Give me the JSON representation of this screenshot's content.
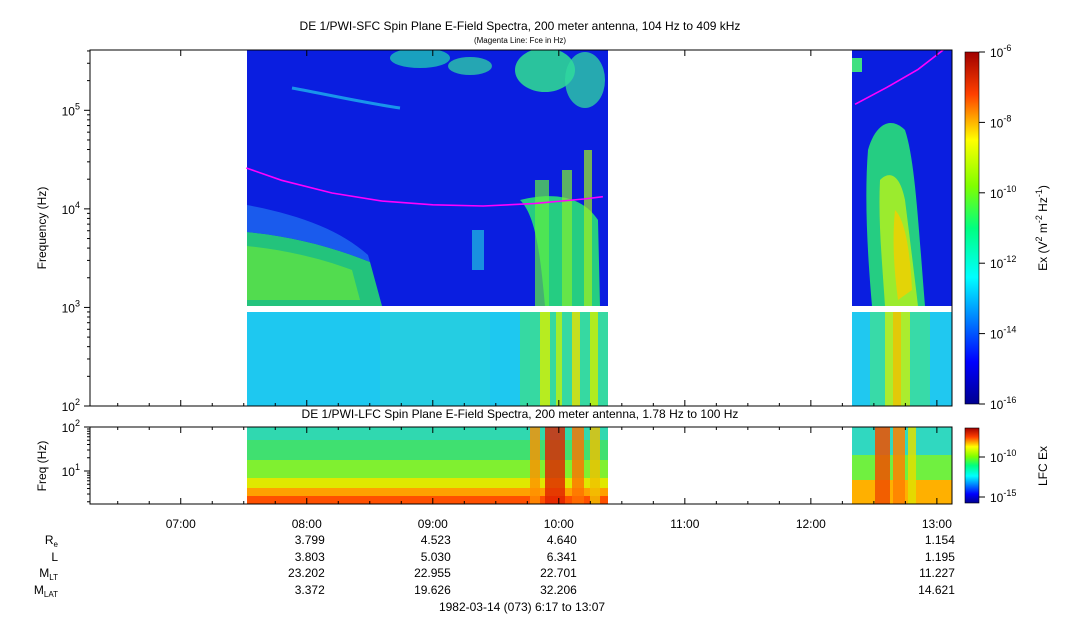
{
  "chart_data": [
    {
      "type": "heatmap",
      "title": "DE 1/PWI-SFC  Spin Plane E-Field Spectra, 200 meter antenna, 104 Hz to 409 kHz",
      "subtitle": "(Magenta Line: Fce in Hz)",
      "ylabel": "Frequency (Hz)",
      "y_scale": "log",
      "ylim": [
        100,
        409000
      ],
      "y_ticks": [
        {
          "base": "10",
          "exp": "2"
        },
        {
          "base": "10",
          "exp": "3"
        },
        {
          "base": "10",
          "exp": "4"
        },
        {
          "base": "10",
          "exp": "5"
        }
      ],
      "colorbar": {
        "label_parts": [
          "Ex (V",
          "2",
          " m",
          "-2",
          " Hz",
          "-1",
          ")"
        ],
        "scale": "log",
        "range": [
          1e-16,
          1e-06
        ],
        "ticks": [
          {
            "base": "10",
            "exp": "-6"
          },
          {
            "base": "10",
            "exp": "-8"
          },
          {
            "base": "10",
            "exp": "-10"
          },
          {
            "base": "10",
            "exp": "-12"
          },
          {
            "base": "10",
            "exp": "-14"
          },
          {
            "base": "10",
            "exp": "-16"
          }
        ]
      },
      "data_intervals_hours": [
        [
          7.52,
          10.38
        ],
        [
          12.32,
          13.1
        ]
      ],
      "fce_line_hz": {
        "x": [
          7.52,
          7.8,
          8.2,
          8.6,
          9.0,
          9.4,
          9.8,
          10.2,
          10.35,
          12.35,
          12.6,
          12.85,
          13.05
        ],
        "y": [
          26000,
          19500,
          14500,
          12000,
          11000,
          10700,
          11300,
          12600,
          13300,
          115000,
          170000,
          260000,
          409000
        ]
      }
    },
    {
      "type": "heatmap",
      "title": "DE 1/PWI-LFC  Spin Plane E-Field Spectra, 200 meter antenna, 1.78 Hz to 100 Hz",
      "ylabel": "Freq (Hz)",
      "y_scale": "log",
      "ylim": [
        1.78,
        100
      ],
      "y_ticks": [
        {
          "base": "10",
          "exp": "1"
        },
        {
          "base": "10",
          "exp": "2"
        }
      ],
      "colorbar": {
        "label": "LFC Ex",
        "scale": "log",
        "ticks": [
          {
            "base": "10",
            "exp": "-10"
          },
          {
            "base": "10",
            "exp": "-15"
          }
        ]
      },
      "data_intervals_hours": [
        [
          7.52,
          10.38
        ],
        [
          12.32,
          13.1
        ]
      ]
    }
  ],
  "time_axis": {
    "range_hours": [
      6.28,
      13.12
    ],
    "ticks": [
      {
        "h": 7,
        "label": "07:00"
      },
      {
        "h": 8,
        "label": "08:00"
      },
      {
        "h": 9,
        "label": "09:00"
      },
      {
        "h": 10,
        "label": "10:00"
      },
      {
        "h": 11,
        "label": "11:00"
      },
      {
        "h": 12,
        "label": "12:00"
      },
      {
        "h": 13,
        "label": "13:00"
      }
    ]
  },
  "ephemeris": {
    "rows": [
      {
        "name": "R",
        "sub": "e",
        "values": [
          "3.799",
          "4.523",
          "4.640",
          "1.154"
        ]
      },
      {
        "name": "L",
        "sub": "",
        "values": [
          "3.803",
          "5.030",
          "6.341",
          "1.195"
        ]
      },
      {
        "name": "M",
        "sub": "LT",
        "values": [
          "23.202",
          "22.955",
          "22.701",
          "11.227"
        ]
      },
      {
        "name": "M",
        "sub": "LAT",
        "values": [
          "3.372",
          "19.626",
          "32.206",
          "14.621"
        ]
      }
    ],
    "column_hours": [
      8,
      9,
      10,
      13
    ]
  },
  "footer": "1982-03-14 (073) 6:17 to 13:07",
  "colors": {
    "fce_line": "#ff00ff",
    "background_level": "#0a1ee0"
  }
}
